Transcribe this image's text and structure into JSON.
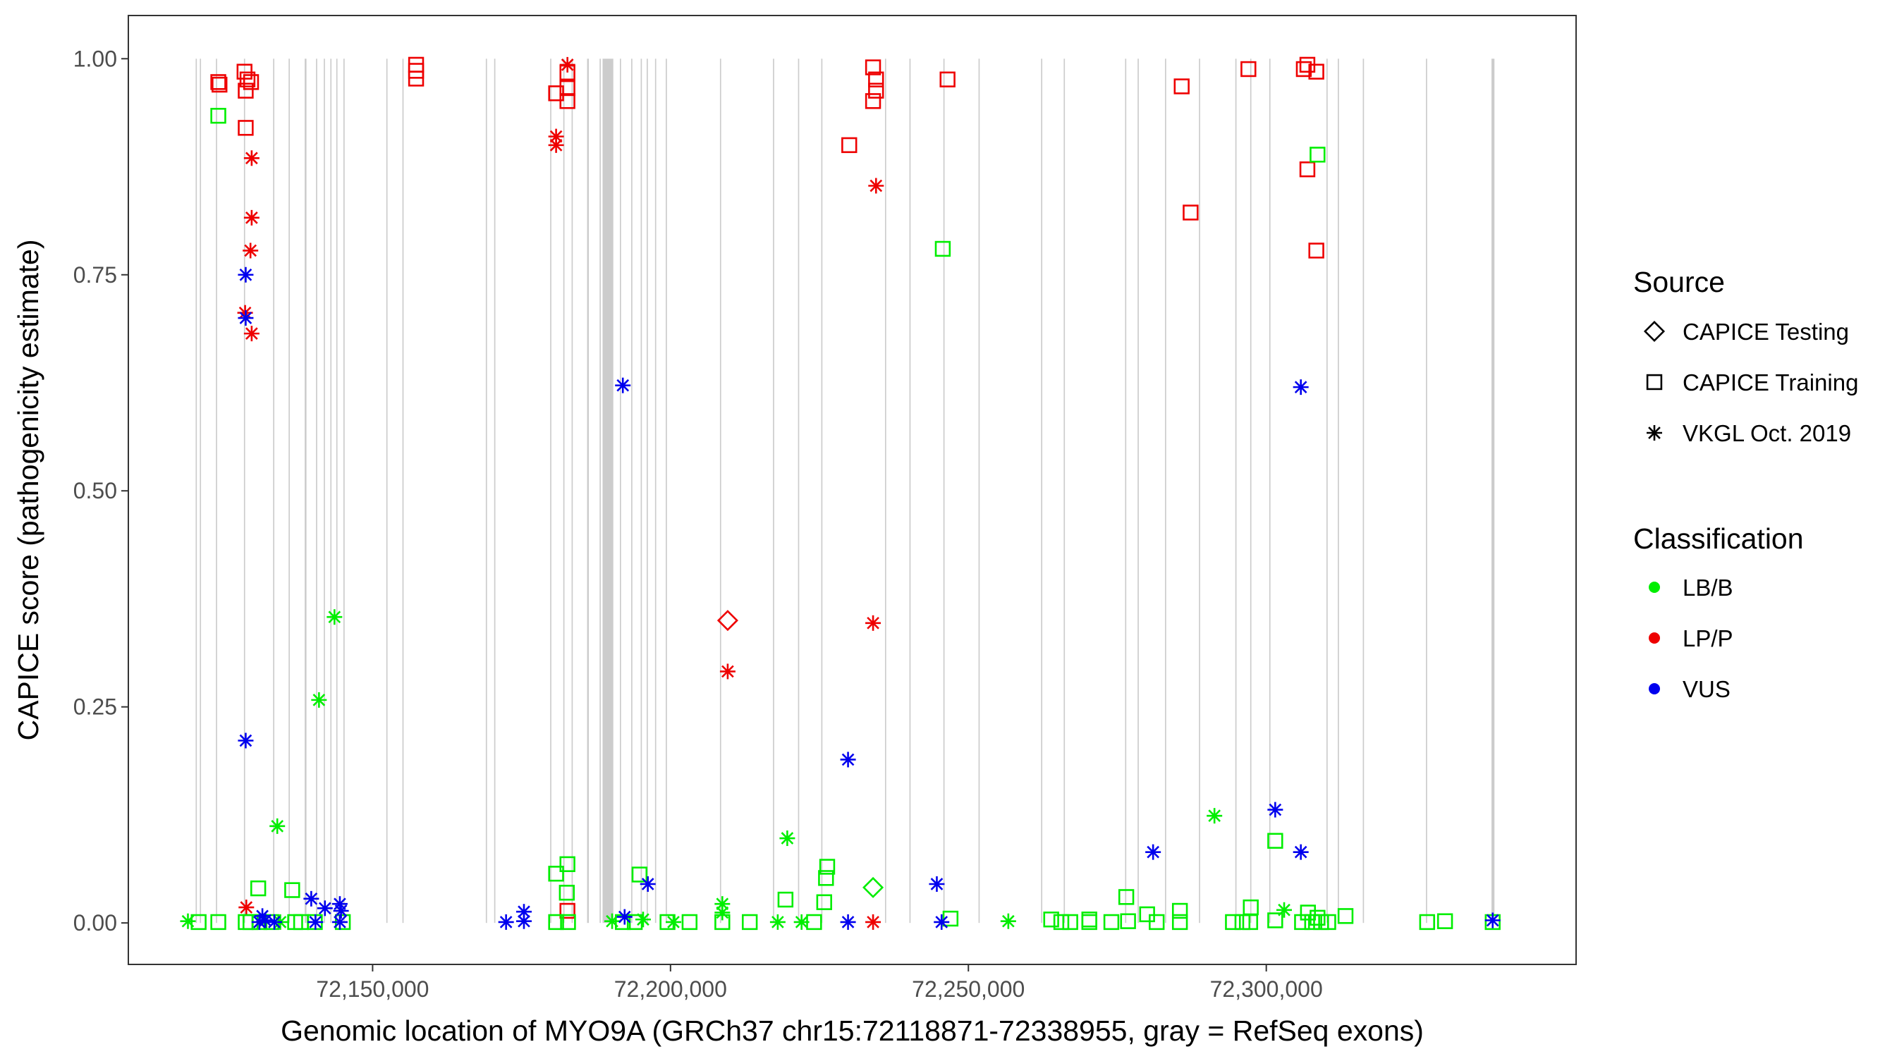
{
  "chart_data": {
    "type": "scatter",
    "title": "",
    "xlabel": "Genomic location of MYO9A (GRCh37 chr15:72118871-72338955, gray = RefSeq exons)",
    "ylabel": "CAPICE score (pathogenicity estimate)",
    "xlim": [
      72109000,
      72352000
    ],
    "ylim": [
      -0.048,
      1.05
    ],
    "x_ticks": [
      72150000,
      72200000,
      72250000,
      72300000
    ],
    "x_tick_labels": [
      "72,150,000",
      "72,200,000",
      "72,250,000",
      "72,300,000"
    ],
    "y_ticks": [
      0,
      0.25,
      0.5,
      0.75,
      1.0
    ],
    "y_tick_labels": [
      "0.00",
      "0.25",
      "0.50",
      "0.75",
      "1.00"
    ],
    "grid": false,
    "exon_color": "#cccccc",
    "exons": [
      [
        72120300,
        72120500
      ],
      [
        72121000,
        72121200
      ],
      [
        72123700,
        72123900
      ],
      [
        72128400,
        72128600
      ],
      [
        72133300,
        72133500
      ],
      [
        72135900,
        72136100
      ],
      [
        72138600,
        72138900
      ],
      [
        72140500,
        72140700
      ],
      [
        72141800,
        72142000
      ],
      [
        72142900,
        72143100
      ],
      [
        72143900,
        72144100
      ],
      [
        72145100,
        72145300
      ],
      [
        72152300,
        72152500
      ],
      [
        72155000,
        72155200
      ],
      [
        72169000,
        72169200
      ],
      [
        72170400,
        72170600
      ],
      [
        72179800,
        72180000
      ],
      [
        72182000,
        72182200
      ],
      [
        72183400,
        72183600
      ],
      [
        72186000,
        72186300
      ],
      [
        72188100,
        72188300
      ],
      [
        72188600,
        72190400
      ],
      [
        72191500,
        72191700
      ],
      [
        72193400,
        72193600
      ],
      [
        72195000,
        72195200
      ],
      [
        72196000,
        72196200
      ],
      [
        72197400,
        72197600
      ],
      [
        72199200,
        72199400
      ],
      [
        72208300,
        72208500
      ],
      [
        72217200,
        72217400
      ],
      [
        72221400,
        72221600
      ],
      [
        72225300,
        72225500
      ],
      [
        72236000,
        72236200
      ],
      [
        72240100,
        72240300
      ],
      [
        72245800,
        72246000
      ],
      [
        72251700,
        72251900
      ],
      [
        72262200,
        72262400
      ],
      [
        72266000,
        72266200
      ],
      [
        72276300,
        72276500
      ],
      [
        72278400,
        72278600
      ],
      [
        72283000,
        72283200
      ],
      [
        72288700,
        72288900
      ],
      [
        72294800,
        72295000
      ],
      [
        72297300,
        72297500
      ],
      [
        72300500,
        72300700
      ],
      [
        72310100,
        72310300
      ],
      [
        72312000,
        72312200
      ],
      [
        72316200,
        72316400
      ],
      [
        72326800,
        72327000
      ],
      [
        72337800,
        72338300
      ]
    ],
    "legend": {
      "placement": "right",
      "source_title": "Source",
      "source_entries": [
        "CAPICE Testing",
        "CAPICE Training",
        "VKGL Oct. 2019"
      ],
      "class_title": "Classification",
      "class_entries": [
        "LB/B",
        "LP/P",
        "VUS"
      ]
    },
    "class_colors": {
      "LB/B": "#00ee00",
      "LP/P": "#ee0000",
      "VUS": "#0000ee"
    },
    "series": [
      {
        "name": "LP/P",
        "points": [
          [
            72124100,
            0.973,
            "training"
          ],
          [
            72124300,
            0.97,
            "training"
          ],
          [
            72128500,
            0.985,
            "training"
          ],
          [
            72128700,
            0.963,
            "training"
          ],
          [
            72129000,
            0.976,
            "training"
          ],
          [
            72129600,
            0.973,
            "training"
          ],
          [
            72128700,
            0.92,
            "training"
          ],
          [
            72129700,
            0.885,
            "vkgl"
          ],
          [
            72129700,
            0.816,
            "vkgl"
          ],
          [
            72129500,
            0.778,
            "vkgl"
          ],
          [
            72128600,
            0.706,
            "vkgl"
          ],
          [
            72129700,
            0.682,
            "vkgl"
          ],
          [
            72128800,
            0.018,
            "vkgl"
          ],
          [
            72157300,
            0.993,
            "training"
          ],
          [
            72157300,
            0.986,
            "training"
          ],
          [
            72157300,
            0.977,
            "training"
          ],
          [
            72180800,
            0.96,
            "training"
          ],
          [
            72182700,
            0.993,
            "vkgl"
          ],
          [
            72182700,
            0.984,
            "training"
          ],
          [
            72182700,
            0.966,
            "training"
          ],
          [
            72182700,
            0.951,
            "training"
          ],
          [
            72180800,
            0.91,
            "vkgl"
          ],
          [
            72180800,
            0.9,
            "vkgl"
          ],
          [
            72182700,
            0.014,
            "training"
          ],
          [
            72209600,
            0.35,
            "testing"
          ],
          [
            72209600,
            0.291,
            "vkgl"
          ],
          [
            72230000,
            0.9,
            "training"
          ],
          [
            72234000,
            0.99,
            "training"
          ],
          [
            72234500,
            0.976,
            "training"
          ],
          [
            72234500,
            0.963,
            "training"
          ],
          [
            72234000,
            0.951,
            "training"
          ],
          [
            72234500,
            0.853,
            "vkgl"
          ],
          [
            72234000,
            0.347,
            "vkgl"
          ],
          [
            72234000,
            0.001,
            "vkgl"
          ],
          [
            72246500,
            0.976,
            "training"
          ],
          [
            72285800,
            0.968,
            "training"
          ],
          [
            72287300,
            0.822,
            "training"
          ],
          [
            72297000,
            0.988,
            "training"
          ],
          [
            72306300,
            0.988,
            "training"
          ],
          [
            72306900,
            0.993,
            "training"
          ],
          [
            72308400,
            0.985,
            "training"
          ],
          [
            72306900,
            0.872,
            "training"
          ],
          [
            72308400,
            0.778,
            "training"
          ]
        ]
      },
      {
        "name": "LB/B",
        "points": [
          [
            72124100,
            0.934,
            "training"
          ],
          [
            72119000,
            0.002,
            "vkgl"
          ],
          [
            72120800,
            0.001,
            "training"
          ],
          [
            72124100,
            0.001,
            "training"
          ],
          [
            72128700,
            0.001,
            "training"
          ],
          [
            72129500,
            0.001,
            "training"
          ],
          [
            72131000,
            0.001,
            "training"
          ],
          [
            72130800,
            0.04,
            "training"
          ],
          [
            72134000,
            0.112,
            "vkgl"
          ],
          [
            72136500,
            0.038,
            "training"
          ],
          [
            72137000,
            0.001,
            "training"
          ],
          [
            72138000,
            0.001,
            "training"
          ],
          [
            72140300,
            0.001,
            "training"
          ],
          [
            72141000,
            0.258,
            "vkgl"
          ],
          [
            72143600,
            0.354,
            "vkgl"
          ],
          [
            72133000,
            0.001,
            "training"
          ],
          [
            72134500,
            0.001,
            "vkgl"
          ],
          [
            72145000,
            0.001,
            "training"
          ],
          [
            72180800,
            0.057,
            "training"
          ],
          [
            72182700,
            0.068,
            "training"
          ],
          [
            72182600,
            0.035,
            "training"
          ],
          [
            72180800,
            0.001,
            "training"
          ],
          [
            72182800,
            0.001,
            "training"
          ],
          [
            72190200,
            0.002,
            "vkgl"
          ],
          [
            72192000,
            0.001,
            "training"
          ],
          [
            72194000,
            0.001,
            "training"
          ],
          [
            72194800,
            0.056,
            "training"
          ],
          [
            72195400,
            0.004,
            "vkgl"
          ],
          [
            72199500,
            0.001,
            "training"
          ],
          [
            72200500,
            0.001,
            "vkgl"
          ],
          [
            72203200,
            0.001,
            "training"
          ],
          [
            72208700,
            0.022,
            "vkgl"
          ],
          [
            72208700,
            0.012,
            "vkgl"
          ],
          [
            72208700,
            0.001,
            "training"
          ],
          [
            72213300,
            0.001,
            "training"
          ],
          [
            72218000,
            0.001,
            "vkgl"
          ],
          [
            72219600,
            0.098,
            "vkgl"
          ],
          [
            72219300,
            0.027,
            "training"
          ],
          [
            72222000,
            0.001,
            "vkgl"
          ],
          [
            72224100,
            0.001,
            "training"
          ],
          [
            72226300,
            0.065,
            "training"
          ],
          [
            72226100,
            0.052,
            "training"
          ],
          [
            72225800,
            0.024,
            "training"
          ],
          [
            72234000,
            0.041,
            "testing"
          ],
          [
            72245700,
            0.78,
            "training"
          ],
          [
            72247000,
            0.005,
            "training"
          ],
          [
            72256700,
            0.002,
            "vkgl"
          ],
          [
            72263900,
            0.004,
            "training"
          ],
          [
            72265600,
            0.001,
            "training"
          ],
          [
            72267100,
            0.001,
            "training"
          ],
          [
            72270300,
            0.004,
            "training"
          ],
          [
            72270300,
            0.001,
            "training"
          ],
          [
            72274000,
            0.001,
            "training"
          ],
          [
            72276500,
            0.03,
            "training"
          ],
          [
            72276800,
            0.002,
            "training"
          ],
          [
            72280000,
            0.01,
            "training"
          ],
          [
            72281600,
            0.001,
            "training"
          ],
          [
            72285500,
            0.001,
            "training"
          ],
          [
            72285500,
            0.014,
            "training"
          ],
          [
            72291300,
            0.124,
            "vkgl"
          ],
          [
            72294400,
            0.001,
            "training"
          ],
          [
            72296000,
            0.001,
            "training"
          ],
          [
            72297400,
            0.018,
            "training"
          ],
          [
            72297300,
            0.001,
            "training"
          ],
          [
            72301500,
            0.095,
            "training"
          ],
          [
            72301500,
            0.003,
            "training"
          ],
          [
            72303000,
            0.015,
            "vkgl"
          ],
          [
            72306000,
            0.001,
            "training"
          ],
          [
            72307000,
            0.012,
            "training"
          ],
          [
            72307700,
            0.001,
            "training"
          ],
          [
            72308600,
            0.889,
            "training"
          ],
          [
            72308600,
            0.006,
            "training"
          ],
          [
            72309200,
            0.001,
            "training"
          ],
          [
            72310400,
            0.001,
            "training"
          ],
          [
            72313300,
            0.008,
            "training"
          ],
          [
            72327000,
            0.001,
            "training"
          ],
          [
            72330000,
            0.002,
            "training"
          ],
          [
            72338000,
            0.001,
            "training"
          ]
        ]
      },
      {
        "name": "VUS",
        "points": [
          [
            72128700,
            0.75,
            "vkgl"
          ],
          [
            72128700,
            0.7,
            "vkgl"
          ],
          [
            72128700,
            0.211,
            "vkgl"
          ],
          [
            72131500,
            0.008,
            "vkgl"
          ],
          [
            72132000,
            0.003,
            "vkgl"
          ],
          [
            72131000,
            0.001,
            "vkgl"
          ],
          [
            72133500,
            0.001,
            "vkgl"
          ],
          [
            72139700,
            0.028,
            "vkgl"
          ],
          [
            72140400,
            0.001,
            "vkgl"
          ],
          [
            72142000,
            0.017,
            "vkgl"
          ],
          [
            72144500,
            0.022,
            "vkgl"
          ],
          [
            72144500,
            0.001,
            "vkgl"
          ],
          [
            72144700,
            0.014,
            "vkgl"
          ],
          [
            72172400,
            0.001,
            "vkgl"
          ],
          [
            72175400,
            0.013,
            "vkgl"
          ],
          [
            72175400,
            0.002,
            "vkgl"
          ],
          [
            72192000,
            0.622,
            "vkgl"
          ],
          [
            72192300,
            0.007,
            "vkgl"
          ],
          [
            72196200,
            0.045,
            "vkgl"
          ],
          [
            72229800,
            0.189,
            "vkgl"
          ],
          [
            72229800,
            0.001,
            "vkgl"
          ],
          [
            72244700,
            0.045,
            "vkgl"
          ],
          [
            72245500,
            0.001,
            "vkgl"
          ],
          [
            72281000,
            0.082,
            "vkgl"
          ],
          [
            72301500,
            0.131,
            "vkgl"
          ],
          [
            72305800,
            0.62,
            "vkgl"
          ],
          [
            72305800,
            0.082,
            "vkgl"
          ],
          [
            72338000,
            0.003,
            "vkgl"
          ]
        ]
      }
    ]
  }
}
